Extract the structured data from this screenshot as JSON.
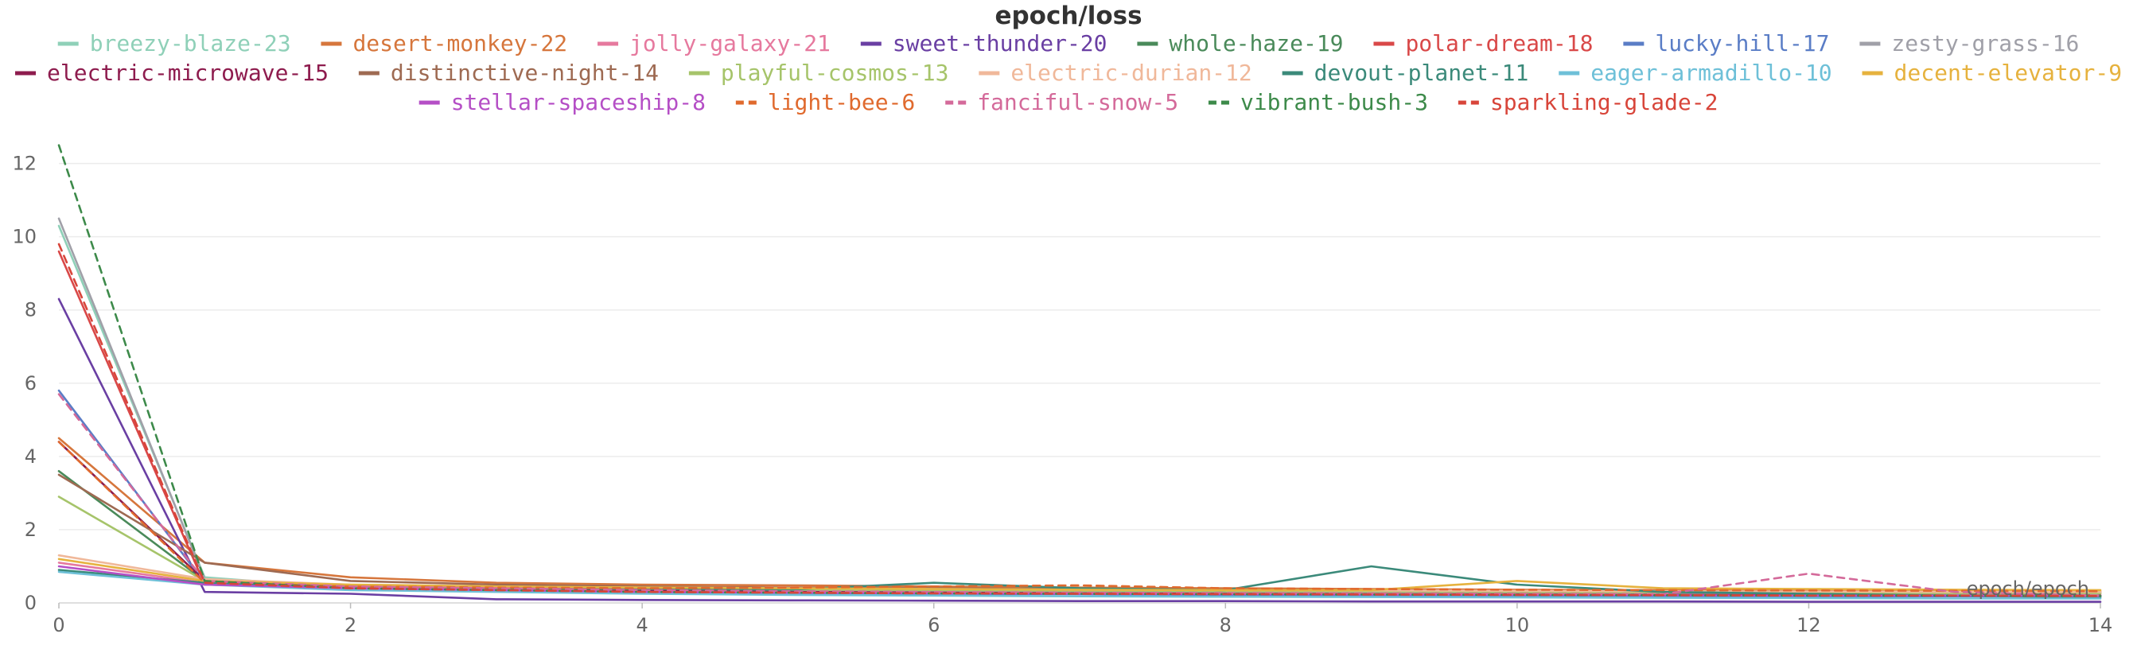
{
  "chart_data": {
    "type": "line",
    "title": "epoch/loss",
    "xlabel": "epoch/epoch",
    "ylabel": "",
    "xlim": [
      0,
      14
    ],
    "ylim": [
      0,
      12.6
    ],
    "xticks": [
      0,
      2,
      4,
      6,
      8,
      10,
      12,
      14
    ],
    "yticks": [
      0,
      2,
      4,
      6,
      8,
      10,
      12
    ],
    "grid": true,
    "legend_position": "top",
    "series": [
      {
        "name": "breezy-blaze-23",
        "color": "#8fd0b8",
        "dash": false,
        "x": [
          0,
          1,
          2,
          3,
          4,
          5,
          6,
          7,
          8,
          9,
          10,
          11,
          12,
          13,
          14
        ],
        "y": [
          10.3,
          0.7,
          0.4,
          0.35,
          0.32,
          0.3,
          0.28,
          0.27,
          0.26,
          0.25,
          0.24,
          0.23,
          0.22,
          0.21,
          0.2
        ]
      },
      {
        "name": "desert-monkey-22",
        "color": "#d6763c",
        "dash": false,
        "x": [
          0,
          1,
          2,
          3,
          4,
          5,
          6,
          7,
          8,
          9,
          10,
          11,
          12,
          13,
          14
        ],
        "y": [
          4.5,
          1.1,
          0.7,
          0.55,
          0.5,
          0.48,
          0.45,
          0.42,
          0.4,
          0.38,
          0.36,
          0.35,
          0.34,
          0.33,
          0.32
        ]
      },
      {
        "name": "jolly-galaxy-21",
        "color": "#e6799e",
        "dash": false,
        "x": [
          0,
          1,
          2,
          3,
          4,
          5,
          6,
          7,
          8,
          9,
          10,
          11,
          12,
          13,
          14
        ],
        "y": [
          1.1,
          0.55,
          0.45,
          0.42,
          0.4,
          0.38,
          0.35,
          0.33,
          0.31,
          0.3,
          0.29,
          0.28,
          0.27,
          0.26,
          0.25
        ]
      },
      {
        "name": "sweet-thunder-20",
        "color": "#6a3fa3",
        "dash": false,
        "x": [
          0,
          1,
          2,
          3,
          4,
          5,
          6,
          7,
          8,
          9,
          10,
          11,
          12,
          13,
          14
        ],
        "y": [
          8.3,
          0.3,
          0.25,
          0.1,
          0.08,
          0.07,
          0.06,
          0.05,
          0.05,
          0.04,
          0.04,
          0.04,
          0.03,
          0.03,
          0.03
        ]
      },
      {
        "name": "whole-haze-19",
        "color": "#4a8a5a",
        "dash": false,
        "x": [
          0,
          1,
          2,
          3,
          4,
          5,
          6,
          7,
          8,
          9,
          10,
          11,
          12,
          13,
          14
        ],
        "y": [
          3.6,
          0.6,
          0.45,
          0.35,
          0.3,
          0.28,
          0.27,
          0.25,
          0.24,
          0.23,
          0.22,
          0.21,
          0.2,
          0.2,
          0.19
        ]
      },
      {
        "name": "polar-dream-18",
        "color": "#d94848",
        "dash": false,
        "x": [
          0,
          1,
          2,
          3,
          4,
          5,
          6,
          7,
          8,
          9,
          10,
          11,
          12,
          13,
          14
        ],
        "y": [
          9.6,
          0.5,
          0.4,
          0.35,
          0.3,
          0.28,
          0.26,
          0.25,
          0.24,
          0.23,
          0.22,
          0.21,
          0.2,
          0.2,
          0.19
        ]
      },
      {
        "name": "lucky-hill-17",
        "color": "#5a7dc6",
        "dash": false,
        "x": [
          0,
          1,
          2,
          3,
          4,
          5,
          6,
          7,
          8,
          9,
          10,
          11,
          12,
          13,
          14
        ],
        "y": [
          5.8,
          0.55,
          0.4,
          0.35,
          0.3,
          0.27,
          0.25,
          0.24,
          0.22,
          0.21,
          0.2,
          0.19,
          0.18,
          0.18,
          0.17
        ]
      },
      {
        "name": "zesty-grass-16",
        "color": "#a0a0a8",
        "dash": false,
        "x": [
          0,
          1,
          2,
          3,
          4,
          5,
          6,
          7,
          8,
          9,
          10,
          11,
          12,
          13,
          14
        ],
        "y": [
          10.5,
          0.65,
          0.45,
          0.4,
          0.36,
          0.33,
          0.3,
          0.28,
          0.27,
          0.26,
          0.25,
          0.24,
          0.23,
          0.22,
          0.21
        ]
      },
      {
        "name": "electric-microwave-15",
        "color": "#8e1c4e",
        "dash": false,
        "x": [
          0,
          1,
          2,
          3,
          4,
          5,
          6,
          7,
          8,
          9,
          10,
          11,
          12,
          13,
          14
        ],
        "y": [
          4.4,
          0.6,
          0.45,
          0.38,
          0.33,
          0.3,
          0.28,
          0.26,
          0.25,
          0.24,
          0.23,
          0.22,
          0.21,
          0.2,
          0.2
        ]
      },
      {
        "name": "distinctive-night-14",
        "color": "#9e6a52",
        "dash": false,
        "x": [
          0,
          1,
          2,
          3,
          4,
          5,
          6,
          7,
          8,
          9,
          10,
          11,
          12,
          13,
          14
        ],
        "y": [
          3.5,
          1.1,
          0.6,
          0.5,
          0.45,
          0.42,
          0.4,
          0.38,
          0.36,
          0.35,
          0.33,
          0.32,
          0.31,
          0.3,
          0.29
        ]
      },
      {
        "name": "playful-cosmos-13",
        "color": "#a6c46a",
        "dash": false,
        "x": [
          0,
          1,
          2,
          3,
          4,
          5,
          6,
          7,
          8,
          9,
          10,
          11,
          12,
          13,
          14
        ],
        "y": [
          2.9,
          0.6,
          0.45,
          0.4,
          0.38,
          0.36,
          0.35,
          0.33,
          0.32,
          0.31,
          0.3,
          0.29,
          0.28,
          0.27,
          0.26
        ]
      },
      {
        "name": "electric-durian-12",
        "color": "#f0b89a",
        "dash": false,
        "x": [
          0,
          1,
          2,
          3,
          4,
          5,
          6,
          7,
          8,
          9,
          10,
          11,
          12,
          13,
          14
        ],
        "y": [
          1.3,
          0.65,
          0.5,
          0.45,
          0.42,
          0.4,
          0.38,
          0.36,
          0.35,
          0.34,
          0.33,
          0.32,
          0.31,
          0.3,
          0.3
        ]
      },
      {
        "name": "devout-planet-11",
        "color": "#3b8a7a",
        "dash": false,
        "x": [
          0,
          1,
          2,
          3,
          4,
          5,
          6,
          7,
          8,
          9,
          10,
          11,
          12,
          13,
          14
        ],
        "y": [
          0.9,
          0.55,
          0.45,
          0.4,
          0.38,
          0.36,
          0.55,
          0.4,
          0.35,
          1.0,
          0.5,
          0.3,
          0.25,
          0.2,
          0.15
        ]
      },
      {
        "name": "eager-armadillo-10",
        "color": "#6ec0d8",
        "dash": false,
        "x": [
          0,
          1,
          2,
          3,
          4,
          5,
          6,
          7,
          8,
          9,
          10,
          11,
          12,
          13,
          14
        ],
        "y": [
          0.85,
          0.5,
          0.35,
          0.3,
          0.25,
          0.22,
          0.2,
          0.18,
          0.17,
          0.16,
          0.15,
          0.14,
          0.13,
          0.12,
          0.12
        ]
      },
      {
        "name": "decent-elevator-9",
        "color": "#e6b23e",
        "dash": false,
        "x": [
          0,
          1,
          2,
          3,
          4,
          5,
          6,
          7,
          8,
          9,
          10,
          11,
          12,
          13,
          14
        ],
        "y": [
          1.2,
          0.6,
          0.5,
          0.45,
          0.42,
          0.4,
          0.38,
          0.36,
          0.35,
          0.35,
          0.6,
          0.4,
          0.38,
          0.36,
          0.35
        ]
      },
      {
        "name": "stellar-spaceship-8",
        "color": "#b54fc6",
        "dash": false,
        "x": [
          0,
          1,
          2,
          3,
          4,
          5,
          6,
          7,
          8,
          9,
          10,
          11,
          12,
          13,
          14
        ],
        "y": [
          1.0,
          0.5,
          0.4,
          0.35,
          0.3,
          0.28,
          0.26,
          0.25,
          0.24,
          0.23,
          0.22,
          0.21,
          0.2,
          0.2,
          0.19
        ]
      },
      {
        "name": "light-bee-6",
        "color": "#e06a2e",
        "dash": true,
        "x": [
          0,
          1,
          2,
          3,
          4,
          5,
          6,
          7,
          8,
          9,
          10,
          11,
          12,
          13,
          14
        ],
        "y": [
          4.4,
          0.55,
          0.45,
          0.42,
          0.4,
          0.42,
          0.45,
          0.48,
          0.4,
          0.38,
          0.36,
          0.35,
          0.34,
          0.33,
          0.32
        ]
      },
      {
        "name": "fanciful-snow-5",
        "color": "#d46a9a",
        "dash": true,
        "x": [
          0,
          1,
          2,
          3,
          4,
          5,
          6,
          7,
          8,
          9,
          10,
          11,
          12,
          13,
          14
        ],
        "y": [
          5.7,
          0.6,
          0.45,
          0.4,
          0.35,
          0.32,
          0.3,
          0.28,
          0.27,
          0.26,
          0.25,
          0.24,
          0.8,
          0.3,
          0.2
        ]
      },
      {
        "name": "vibrant-bush-3",
        "color": "#3d8a4a",
        "dash": true,
        "x": [
          0,
          1,
          2,
          3,
          4,
          5,
          6,
          7,
          8,
          9,
          10,
          11,
          12,
          13,
          14
        ],
        "y": [
          12.5,
          0.6,
          0.4,
          0.35,
          0.3,
          0.28,
          0.26,
          0.25,
          0.24,
          0.23,
          0.22,
          0.21,
          0.2,
          0.2,
          0.19
        ]
      },
      {
        "name": "sparkling-glade-2",
        "color": "#d8453a",
        "dash": true,
        "x": [
          0,
          1,
          2,
          3,
          4,
          5,
          6,
          7,
          8,
          9,
          10,
          11,
          12,
          13,
          14
        ],
        "y": [
          9.8,
          0.55,
          0.4,
          0.35,
          0.3,
          0.28,
          0.26,
          0.25,
          0.24,
          0.23,
          0.22,
          0.21,
          0.2,
          0.2,
          0.19
        ]
      }
    ]
  }
}
